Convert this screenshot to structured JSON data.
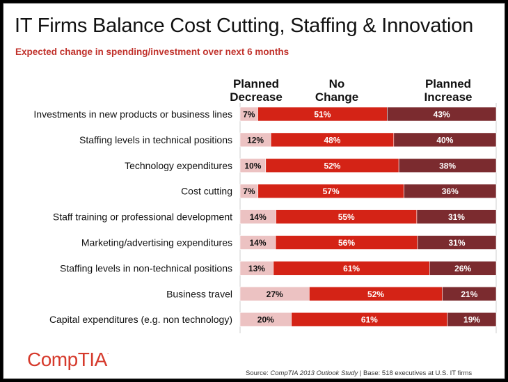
{
  "title": "IT Firms Balance Cost Cutting, Staffing & Innovation",
  "subtitle": "Expected change in spending/investment over next 6 months",
  "column_headers": {
    "decrease": "Planned\nDecrease",
    "nochange": "No\nChange",
    "increase": "Planned\nIncrease"
  },
  "logo": {
    "text": "CompTIA",
    "mark": "."
  },
  "source": {
    "prefix": "Source: ",
    "study": "CompTIA 2013 Outlook Study",
    "suffix": " | Base: 518 executives at U.S. IT firms"
  },
  "colors": {
    "decrease": "#ecc2c2",
    "nochange": "#d42316",
    "increase": "#7b2b2f",
    "grid": "#cfcfcf",
    "label_dark": "#111111",
    "label_light": "#ffffff",
    "brand": "#d63a2c"
  },
  "chart_data": {
    "type": "bar",
    "orientation": "horizontal",
    "stacked": true,
    "categories": [
      "Investments in new products or business lines",
      "Staffing levels in technical positions",
      "Technology expenditures",
      "Cost cutting",
      "Staff training or professional development",
      "Marketing/advertising expenditures",
      "Staffing levels in non-technical positions",
      "Business travel",
      "Capital expenditures (e.g. non technology)"
    ],
    "series": [
      {
        "name": "Planned Decrease",
        "values": [
          7,
          12,
          10,
          7,
          14,
          14,
          13,
          27,
          20
        ]
      },
      {
        "name": "No Change",
        "values": [
          51,
          48,
          52,
          57,
          55,
          56,
          61,
          52,
          61
        ]
      },
      {
        "name": "Planned Increase",
        "values": [
          43,
          40,
          38,
          36,
          31,
          31,
          26,
          21,
          19
        ]
      }
    ],
    "value_suffix": "%",
    "grid": true
  }
}
